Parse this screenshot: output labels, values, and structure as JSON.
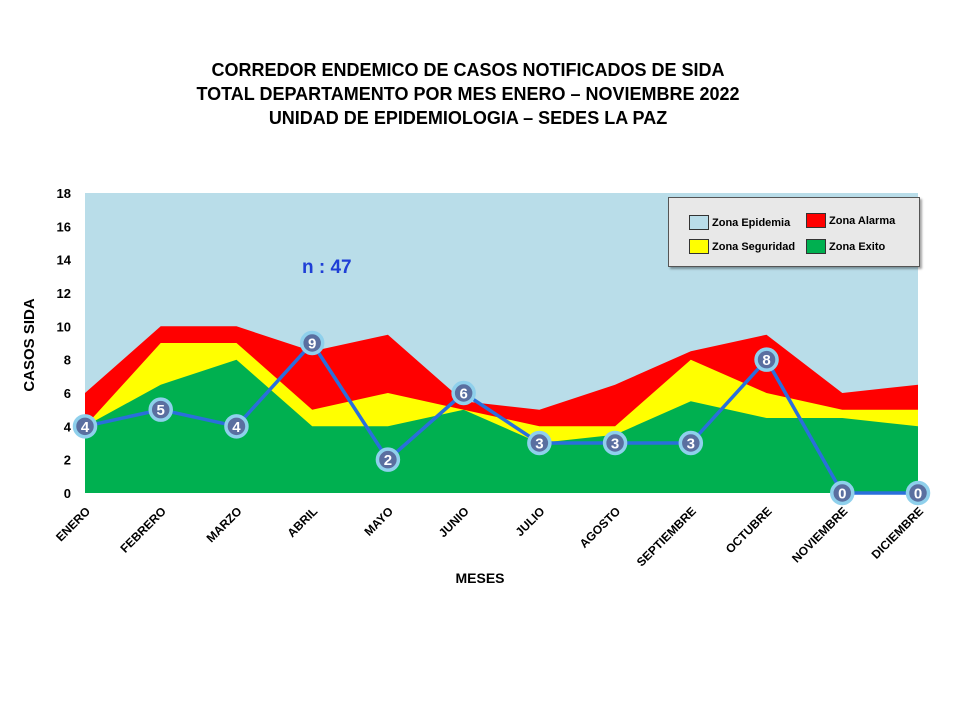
{
  "title": {
    "line1": "CORREDOR ENDEMICO  DE CASOS NOTIFICADOS  DE SIDA",
    "line2": "TOTAL DEPARTAMENTO  POR MES ENERO – NOVIEMBRE  2022",
    "line3": "UNIDAD  DE EPIDEMIOLOGIA  – SEDES LA PAZ"
  },
  "annotation": "n : 47",
  "legend": {
    "placement": "top-right",
    "items": [
      {
        "label": "Zona Epidemia",
        "color": "#b9dde9"
      },
      {
        "label": "Zona Alarma",
        "color": "#ff0000"
      },
      {
        "label": "Zona Seguridad",
        "color": "#ffff00"
      },
      {
        "label": "Zona Exito",
        "color": "#00b050"
      }
    ]
  },
  "chart_data": {
    "type": "area",
    "ylabel": "CASOS SIDA",
    "xlabel": "MESES",
    "ylim": [
      0,
      18
    ],
    "yticks": [
      0,
      2,
      4,
      6,
      8,
      10,
      12,
      14,
      16,
      18
    ],
    "grid": false,
    "categories": [
      "ENERO",
      "FEBRERO",
      "MARZO",
      "ABRIL",
      "MAYO",
      "JUNIO",
      "JULIO",
      "AGOSTO",
      "SEPTIEMBRE",
      "OCTUBRE",
      "NOVIEMBRE",
      "DICIEMBRE"
    ],
    "bands": [
      {
        "name": "Zona Epidemia",
        "color": "#b9dde9",
        "values": [
          18,
          18,
          18,
          18,
          18,
          18,
          18,
          18,
          18,
          18,
          18,
          18
        ]
      },
      {
        "name": "Zona Alarma",
        "color": "#ff0000",
        "values": [
          6,
          10,
          10,
          8.5,
          9.5,
          5.5,
          5,
          6.5,
          8.5,
          9.5,
          6,
          6.5
        ]
      },
      {
        "name": "Zona Seguridad",
        "color": "#ffff00",
        "values": [
          4,
          9,
          9,
          5,
          6,
          5,
          4,
          4,
          8,
          6,
          5,
          5
        ]
      },
      {
        "name": "Zona Exito",
        "color": "#00b050",
        "values": [
          4,
          6.5,
          8,
          4,
          4,
          5,
          3,
          3.5,
          5.5,
          4.5,
          4.5,
          4
        ]
      }
    ],
    "series": [
      {
        "values": [
          4,
          5,
          4,
          9,
          2,
          6,
          3,
          3,
          3,
          8,
          0,
          0
        ],
        "color": "#2a6fdb"
      }
    ]
  }
}
